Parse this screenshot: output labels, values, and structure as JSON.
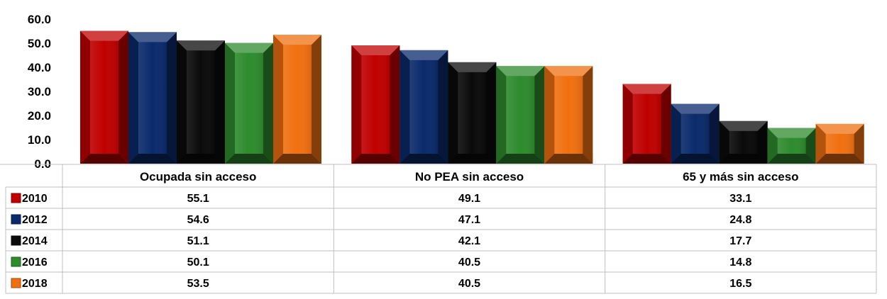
{
  "chart_data": {
    "type": "bar",
    "categories": [
      "Ocupada sin acceso",
      "No PEA sin acceso",
      "65 y más sin acceso"
    ],
    "series": [
      {
        "name": "2010",
        "values": [
          55.1,
          49.1,
          33.1
        ],
        "color": "#c00000"
      },
      {
        "name": "2012",
        "values": [
          54.6,
          47.1,
          24.8
        ],
        "color": "#0a2a6b"
      },
      {
        "name": "2014",
        "values": [
          51.1,
          42.1,
          17.7
        ],
        "color": "#0a0a0a"
      },
      {
        "name": "2016",
        "values": [
          50.1,
          40.5,
          14.8
        ],
        "color": "#2e8b2e"
      },
      {
        "name": "2018",
        "values": [
          53.5,
          40.5,
          16.5
        ],
        "color": "#f07010"
      }
    ],
    "ylim": [
      0,
      60
    ],
    "yticks": [
      "0.0",
      "10.0",
      "20.0",
      "30.0",
      "40.0",
      "50.0",
      "60.0"
    ],
    "cell_labels": [
      [
        "55.1",
        "49.1",
        "33.1"
      ],
      [
        "54.6",
        "47.1",
        "24.8"
      ],
      [
        "51.1",
        "42.1",
        "17.7"
      ],
      [
        "50.1",
        "40.5",
        "14.8"
      ],
      [
        "53.5",
        "40.5",
        "16.5"
      ]
    ],
    "data_table": true,
    "grid": false,
    "legend": "table-left"
  }
}
